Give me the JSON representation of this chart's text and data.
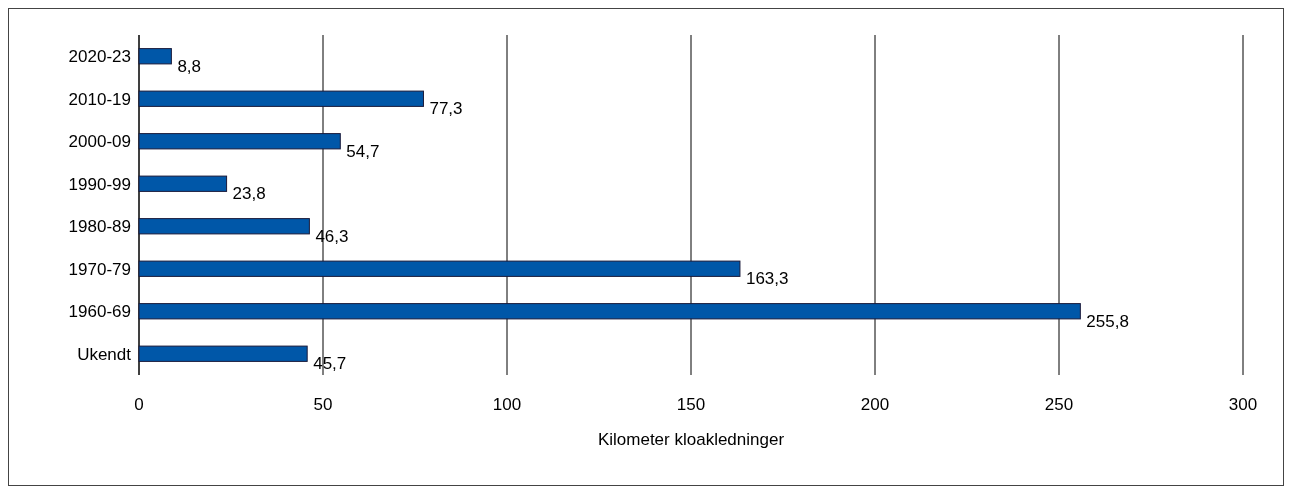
{
  "chart_data": {
    "type": "bar",
    "orientation": "horizontal",
    "xlabel": "Kilometer kloakledninger",
    "categories": [
      "2020-23",
      "2010-19",
      "2000-09",
      "1990-99",
      "1980-89",
      "1970-79",
      "1960-69",
      "Ukendt"
    ],
    "values": [
      8.8,
      77.3,
      54.7,
      23.8,
      46.3,
      163.3,
      255.8,
      45.7
    ],
    "value_labels": [
      "8,8",
      "77,3",
      "54,7",
      "23,8",
      "46,3",
      "163,3",
      "255,8",
      "45,7"
    ],
    "color": "#0057a8",
    "xlim": [
      0,
      300
    ],
    "xticks": [
      0,
      50,
      100,
      150,
      200,
      250,
      300
    ],
    "grid": "x"
  }
}
